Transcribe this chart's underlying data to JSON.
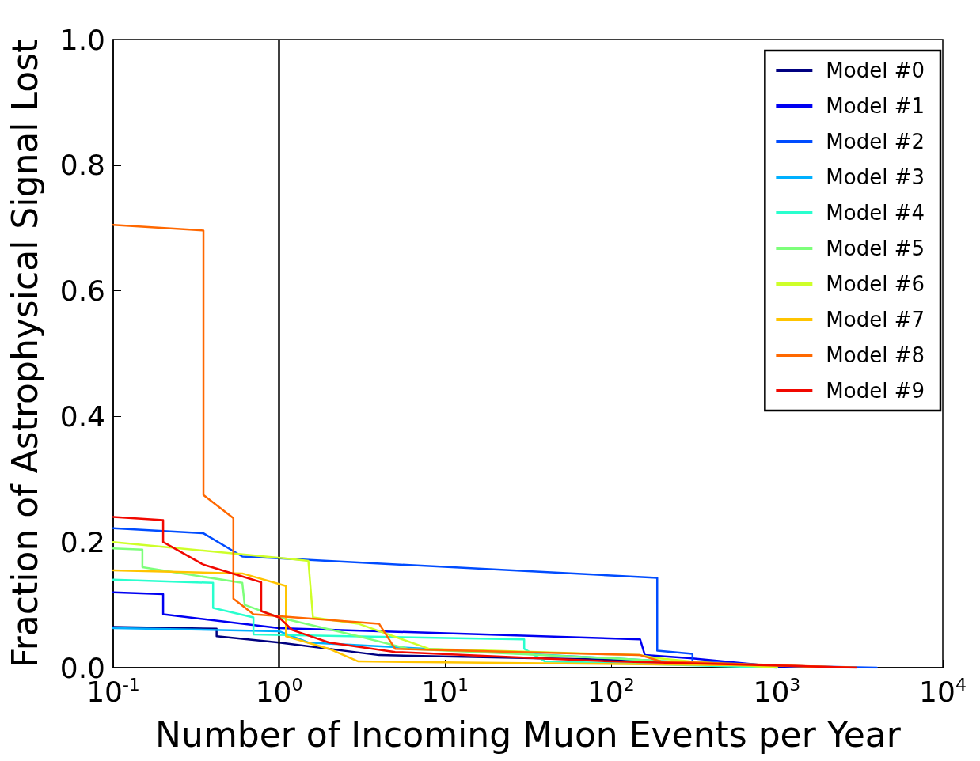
{
  "chart_data": {
    "type": "line",
    "xlabel": "Number of Incoming Muon Events per Year",
    "ylabel": "Fraction of Astrophysical Signal Lost",
    "log": "x",
    "xlim": [
      0.1,
      10000
    ],
    "xticks": [
      {
        "value": 0.1,
        "label": "10$^{-1}$"
      },
      {
        "value": 1,
        "label": "10$^{0}$"
      },
      {
        "value": 10,
        "label": "10$^{1}$"
      },
      {
        "value": 100,
        "label": "10$^{2}$"
      },
      {
        "value": 1000,
        "label": "10$^{3}$"
      },
      {
        "value": 10000,
        "label": "10$^{4}$"
      }
    ],
    "ylim": [
      0,
      1
    ],
    "yticks": [
      {
        "value": 0,
        "label": "0.0"
      },
      0.2,
      0.4,
      0.6,
      0.8,
      {
        "value": 1,
        "label": "1.0"
      }
    ],
    "grid": false,
    "legend": "top right",
    "marker": "none",
    "line_style": "solid",
    "ref_lines": [
      {
        "axis": "x",
        "value": 1,
        "label": null,
        "color": "#000000"
      }
    ],
    "series": [
      {
        "name": "Model #0",
        "color": "#000080",
        "x": [
          0.1,
          0.42,
          0.42,
          1,
          4,
          140,
          1000
        ],
        "values": [
          0.065,
          0.062,
          0.05,
          0.04,
          0.02,
          0.012,
          0
        ]
      },
      {
        "name": "Model #1",
        "color": "#0000f1",
        "x": [
          0.1,
          0.2,
          0.2,
          1,
          150,
          160,
          300,
          1000,
          3000
        ],
        "values": [
          0.12,
          0.117,
          0.085,
          0.063,
          0.045,
          0.02,
          0.015,
          0.002,
          0
        ]
      },
      {
        "name": "Model #2",
        "color": "#004cff",
        "x": [
          0.1,
          0.35,
          0.6,
          1,
          190,
          190,
          310,
          310,
          1000,
          4000
        ],
        "values": [
          0.222,
          0.214,
          0.177,
          0.174,
          0.143,
          0.027,
          0.022,
          0.01,
          0.003,
          0
        ]
      },
      {
        "name": "Model #3",
        "color": "#00b0ff",
        "x": [
          0.1,
          1,
          1.5,
          100,
          1000
        ],
        "values": [
          0.063,
          0.058,
          0.04,
          0.015,
          0
        ]
      },
      {
        "name": "Model #4",
        "color": "#29ffce",
        "x": [
          0.1,
          0.4,
          0.4,
          0.7,
          0.7,
          30,
          30,
          40,
          1000
        ],
        "values": [
          0.14,
          0.135,
          0.095,
          0.08,
          0.053,
          0.045,
          0.03,
          0.01,
          0
        ]
      },
      {
        "name": "Model #5",
        "color": "#7dff7a",
        "x": [
          0.1,
          0.15,
          0.15,
          0.6,
          0.62,
          1,
          3,
          6,
          100,
          1000
        ],
        "values": [
          0.19,
          0.188,
          0.16,
          0.135,
          0.1,
          0.08,
          0.05,
          0.03,
          0.015,
          0
        ]
      },
      {
        "name": "Model #6",
        "color": "#ceff29",
        "x": [
          0.1,
          1.2,
          1.5,
          1.6,
          3,
          8,
          150,
          190,
          300,
          1000
        ],
        "values": [
          0.2,
          0.173,
          0.17,
          0.08,
          0.07,
          0.03,
          0.02,
          0.015,
          0.01,
          0
        ]
      },
      {
        "name": "Model #7",
        "color": "#ffc400",
        "x": [
          0.1,
          0.6,
          1.1,
          1.1,
          2,
          3,
          1000,
          3000
        ],
        "values": [
          0.155,
          0.15,
          0.13,
          0.05,
          0.03,
          0.01,
          0.003,
          0
        ]
      },
      {
        "name": "Model #8",
        "color": "#ff6800",
        "x": [
          0.1,
          0.35,
          0.35,
          0.53,
          0.53,
          0.7,
          4,
          5,
          150,
          200,
          3000
        ],
        "values": [
          0.705,
          0.696,
          0.275,
          0.238,
          0.11,
          0.085,
          0.07,
          0.03,
          0.02,
          0.01,
          0
        ]
      },
      {
        "name": "Model #9",
        "color": "#f10800",
        "x": [
          0.1,
          0.2,
          0.2,
          0.35,
          0.78,
          0.78,
          1,
          1.2,
          2,
          5,
          100,
          3000
        ],
        "values": [
          0.24,
          0.235,
          0.2,
          0.164,
          0.136,
          0.09,
          0.08,
          0.06,
          0.04,
          0.025,
          0.01,
          0
        ]
      }
    ]
  }
}
